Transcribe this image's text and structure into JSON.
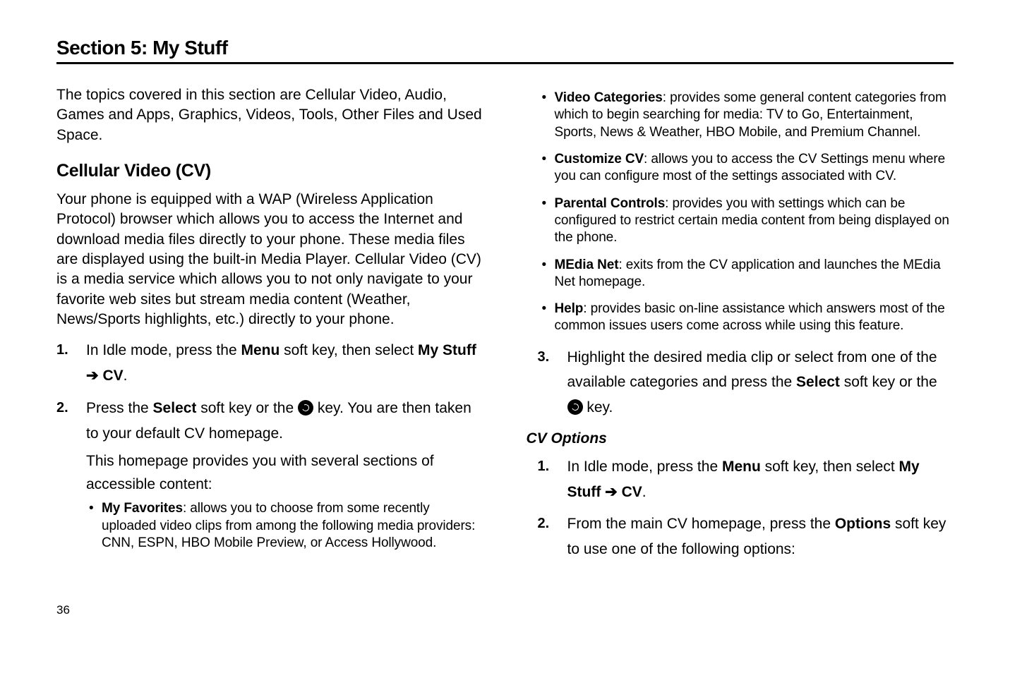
{
  "title": "Section 5: My Stuff",
  "intro": "The topics covered in this section are Cellular Video, Audio, Games and Apps, Graphics, Videos, Tools, Other Files and Used Space.",
  "h2": "Cellular Video (CV)",
  "wap_body": "Your phone is equipped with a WAP (Wireless Application Protocol) browser which allows you to access the Internet and download media files directly to your phone. These media files are displayed using the built-in Media Player. Cellular Video (CV) is a media service which allows you to not only navigate to your favorite web sites but stream media content (Weather, News/Sports highlights, etc.) directly to your phone.",
  "left_steps": {
    "s1_num": "1.",
    "s1_a": "In Idle mode, press the ",
    "s1_menu": "Menu",
    "s1_b": " soft key, then select ",
    "s1_my": "My Stuff",
    "s1_arrow": " ➔ ",
    "s1_cv": "CV",
    "s1_dot": ".",
    "s2_num": "2.",
    "s2_a": "Press the ",
    "s2_select": "Select",
    "s2_b": " soft key or the ",
    "s2_c": " key. You are then taken to your default CV homepage.",
    "s2_sub": "This homepage provides you with several sections of accessible content:"
  },
  "left_bullets": {
    "b1_t": "My Favorites",
    "b1_r": ": allows you to choose from some recently uploaded video clips from among the following media providers: CNN, ESPN, HBO Mobile Preview, or Access Hollywood."
  },
  "right_bullets": {
    "b1_t": "Video Categories",
    "b1_r": ": provides some general content categories from which to begin searching for media: TV to Go, Entertainment, Sports, News & Weather, HBO Mobile, and Premium Channel.",
    "b2_t": "Customize CV",
    "b2_r": ": allows you to access the CV Settings menu where you can configure most of the settings associated with CV.",
    "b3_t": "Parental Controls",
    "b3_r": ": provides you with settings which can be configured to restrict certain media content from being displayed on the phone.",
    "b4_t": "MEdia Net",
    "b4_r": ": exits from the CV application and launches the MEdia Net homepage.",
    "b5_t": "Help",
    "b5_r": ": provides basic on-line assistance which answers most of the common issues users come across while using this feature."
  },
  "right_steps": {
    "s3_num": "3.",
    "s3_a": "Highlight the desired media clip or select from one of the available categories and press the ",
    "s3_select": "Select",
    "s3_b": " soft key or the ",
    "s3_c": " key."
  },
  "h3": "CV Options",
  "cv_steps": {
    "s1_num": "1.",
    "s1_a": "In Idle mode, press the ",
    "s1_menu": "Menu",
    "s1_b": " soft key, then select ",
    "s1_my": "My Stuff",
    "s1_arrow": " ➔ ",
    "s1_cv": "CV",
    "s1_dot": ".",
    "s2_num": "2.",
    "s2_a": "From the main CV homepage, press the ",
    "s2_opt": "Options",
    "s2_b": " soft key to use one of the following options:"
  },
  "page_number": "36"
}
